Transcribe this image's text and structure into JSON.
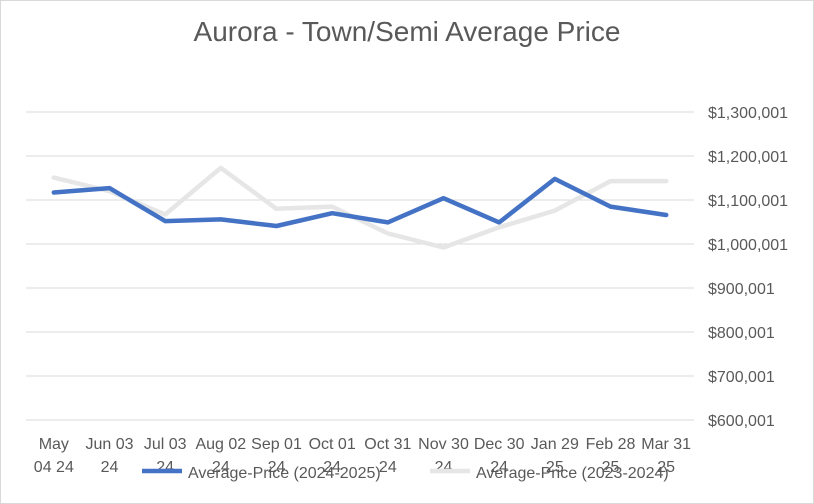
{
  "chart_data": {
    "type": "line",
    "title": "Aurora  - Town/Semi Average Price",
    "xlabel": "",
    "ylabel": "",
    "categories": [
      "May 04 24",
      "Jun 03 24",
      "Jul 03 24",
      "Aug 02 24",
      "Sep 01 24",
      "Oct 01 24",
      "Oct 31 24",
      "Nov 30 24",
      "Dec 30 24",
      "Jan 29 25",
      "Feb 28 25",
      "Mar 31 25"
    ],
    "category_lines": [
      [
        "May",
        "04 24"
      ],
      [
        "Jun 03",
        "24"
      ],
      [
        "Jul 03",
        "24"
      ],
      [
        "Aug 02",
        "24"
      ],
      [
        "Sep 01",
        "24"
      ],
      [
        "Oct 01",
        "24"
      ],
      [
        "Oct 31",
        "24"
      ],
      [
        "Nov 30",
        "24"
      ],
      [
        "Dec 30",
        "24"
      ],
      [
        "Jan 29",
        "25"
      ],
      [
        "Feb 28",
        "25"
      ],
      [
        "Mar 31",
        "25"
      ]
    ],
    "y_ticks": [
      {
        "value": 600001,
        "label": "$600,001"
      },
      {
        "value": 700001,
        "label": "$700,001"
      },
      {
        "value": 800001,
        "label": "$800,001"
      },
      {
        "value": 900001,
        "label": "$900,001"
      },
      {
        "value": 1000001,
        "label": "$1,000,001"
      },
      {
        "value": 1100001,
        "label": "$1,100,001"
      },
      {
        "value": 1200001,
        "label": "$1,200,001"
      },
      {
        "value": 1300001,
        "label": "$1,300,001"
      }
    ],
    "ylim": [
      600001,
      1300001
    ],
    "y_axis_side": "right",
    "grid": true,
    "legend": "bottom",
    "series": [
      {
        "name": "Average-Price (2024-2025)",
        "color": "#4472c4",
        "values": [
          1117000,
          1127000,
          1052000,
          1056000,
          1041000,
          1070000,
          1049000,
          1104000,
          1049000,
          1148000,
          1085000,
          1066000
        ]
      },
      {
        "name": "Average-Price (2023-2024)",
        "color": "#e7e6e6",
        "values": [
          1151000,
          1120000,
          1067000,
          1173000,
          1080000,
          1085000,
          1024000,
          992000,
          1038000,
          1076000,
          1143000,
          1143000
        ]
      }
    ]
  }
}
